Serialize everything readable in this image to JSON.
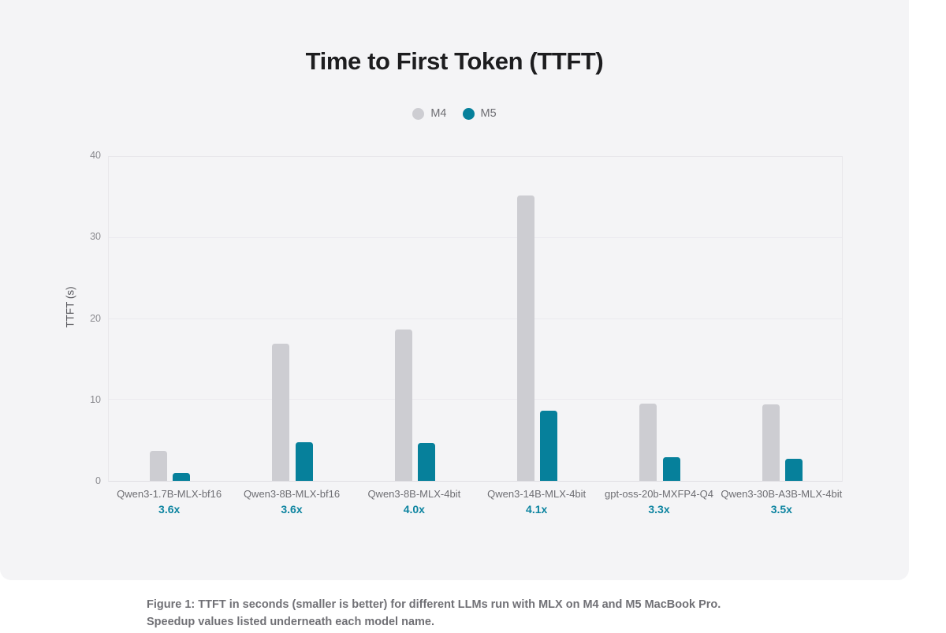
{
  "page": {
    "page_bg": "#ffffff",
    "card_bg": "#f4f4f6"
  },
  "chart_data": {
    "type": "bar",
    "title": "Time to First Token (TTFT)",
    "ylabel": "TTFT (s)",
    "xlabel": "",
    "ylim": [
      0,
      40
    ],
    "yticks": [
      0,
      10,
      20,
      30,
      40
    ],
    "grid": true,
    "legend_position": "top-center",
    "categories": [
      "Qwen3-1.7B-MLX-bf16",
      "Qwen3-8B-MLX-bf16",
      "Qwen3-8B-MLX-4bit",
      "Qwen3-14B-MLX-4bit",
      "gpt-oss-20b-MXFP4-Q4",
      "Qwen3-30B-A3B-MLX-4bit"
    ],
    "series": [
      {
        "name": "M4",
        "color": "#cdcdd2",
        "values": [
          3.7,
          16.9,
          18.6,
          35.1,
          9.5,
          9.4
        ]
      },
      {
        "name": "M5",
        "color": "#06809b",
        "values": [
          1.0,
          4.7,
          4.65,
          8.6,
          2.9,
          2.7
        ]
      }
    ],
    "speedup_labels": [
      "3.6x",
      "3.6x",
      "4.0x",
      "4.1x",
      "3.3x",
      "3.5x"
    ],
    "speedup_color": "#0d84a0"
  },
  "caption": {
    "text": "Figure 1: TTFT in seconds (smaller is better) for different LLMs run with MLX on M4 and M5 MacBook Pro. Speedup values listed underneath each model name."
  }
}
